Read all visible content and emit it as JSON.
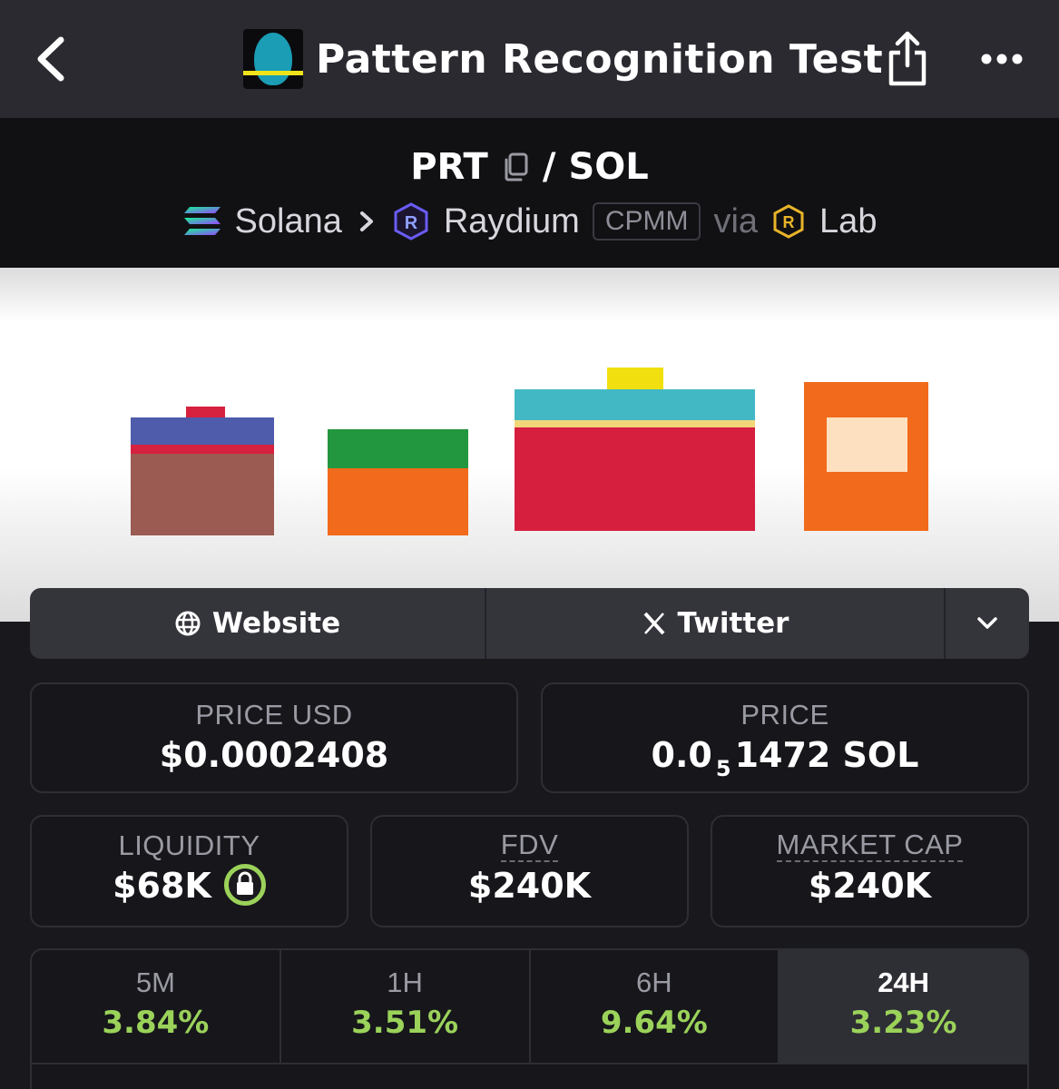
{
  "header": {
    "title": "Pattern Recognition Test",
    "back_icon": "chevron-left-icon",
    "share_icon": "share-icon",
    "more_icon": "more-horizontal-icon"
  },
  "pair": {
    "base": "PRT",
    "separator": "/",
    "quote": "SOL",
    "chain": "Solana",
    "dex": "Raydium",
    "dex_badge": "CPMM",
    "via_label": "via",
    "launchpad": "Lab"
  },
  "links": {
    "website": "Website",
    "twitter": "Twitter"
  },
  "prices": {
    "price_usd_label": "PRICE USD",
    "price_usd_value": "$0.0002408",
    "price_label": "PRICE",
    "price_prefix": "0.0",
    "price_zeros": "5",
    "price_suffix": "1472 SOL"
  },
  "metrics": {
    "liquidity_label": "LIQUIDITY",
    "liquidity_value": "$68K",
    "fdv_label": "FDV",
    "fdv_value": "$240K",
    "mcap_label": "MARKET CAP",
    "mcap_value": "$240K"
  },
  "timeframes": [
    {
      "label": "5M",
      "value": "3.84%"
    },
    {
      "label": "1H",
      "value": "3.51%"
    },
    {
      "label": "6H",
      "value": "9.64%"
    },
    {
      "label": "24H",
      "value": "3.23%"
    }
  ],
  "colors": {
    "accent_green": "#9bd25a",
    "background": "#18181d",
    "topbar": "#2a2a30",
    "solana_purple": "#9945ff",
    "raydium_blue": "#5a4cf0",
    "lab_gold": "#e8b428"
  }
}
